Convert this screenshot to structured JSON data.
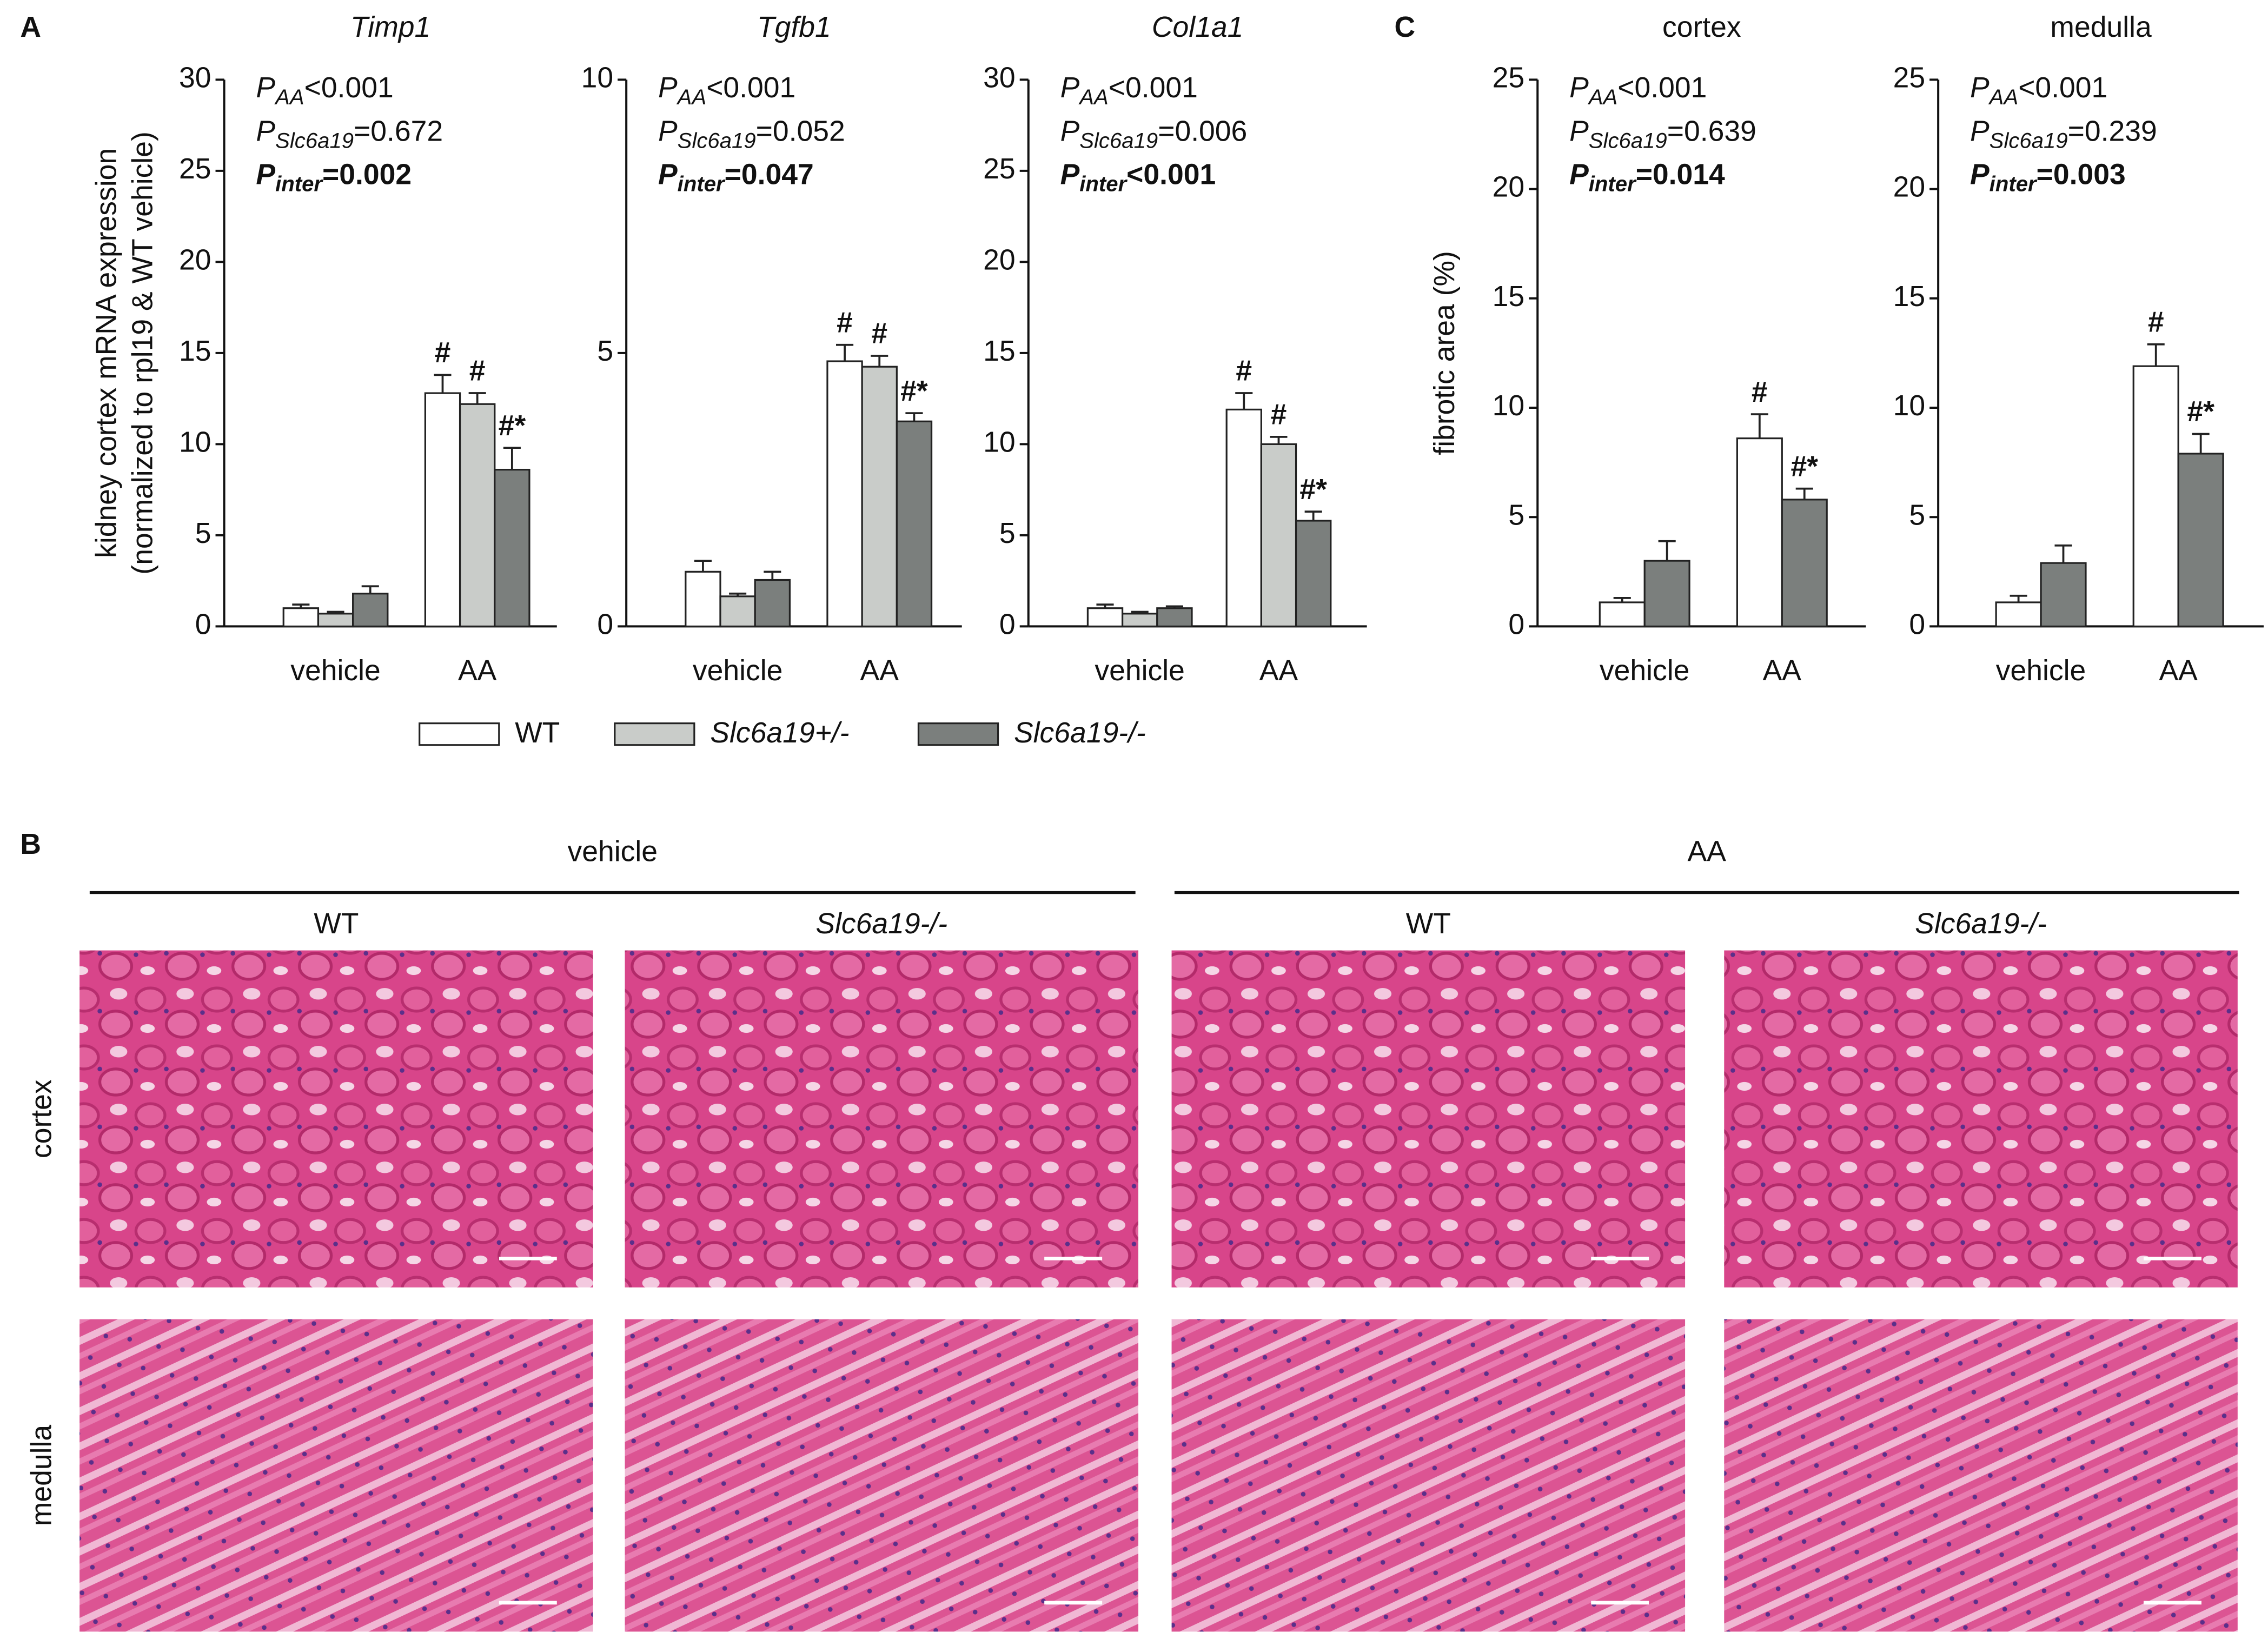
{
  "panel_labels": [
    "A",
    "C"
  ],
  "chart_data": [
    {
      "type": "bar",
      "title": "Timp1",
      "title_italic": true,
      "ylabel": [
        "kidney cortex mRNA expression",
        "(normalized to rpl19 & WT vehicle)"
      ],
      "categories": [
        "vehicle",
        "AA"
      ],
      "ylim": [
        0,
        30
      ],
      "yticks": [
        0,
        5,
        10,
        15,
        20,
        25,
        30
      ],
      "annotations": [
        {
          "symbol": "P",
          "subscript": "AA",
          "text": "<0.001",
          "bold": false
        },
        {
          "symbol": "P",
          "subscript": "Slc6a19",
          "text": "=0.672",
          "bold": false
        },
        {
          "symbol": "P",
          "subscript": "inter",
          "text": "=0.002",
          "bold": true
        }
      ],
      "series": [
        {
          "name": "WT",
          "italic": false,
          "color": "#ffffff",
          "values": [
            1.0,
            12.8
          ],
          "errors": [
            0.2,
            1.0
          ],
          "markers": [
            null,
            "#"
          ]
        },
        {
          "name": "Slc6a19+/-",
          "italic": true,
          "color": "#c9ccc9",
          "values": [
            0.7,
            12.2
          ],
          "errors": [
            0.1,
            0.6
          ],
          "markers": [
            null,
            "#"
          ]
        },
        {
          "name": "Slc6a19-/-",
          "italic": true,
          "color": "#7b7f7d",
          "values": [
            1.8,
            8.6
          ],
          "errors": [
            0.4,
            1.2
          ],
          "markers": [
            null,
            "#*"
          ]
        }
      ]
    },
    {
      "type": "bar",
      "title": "Tgfb1",
      "title_italic": true,
      "categories": [
        "vehicle",
        "AA"
      ],
      "ylim": [
        0,
        10
      ],
      "yticks": [
        0,
        5,
        10
      ],
      "annotations": [
        {
          "symbol": "P",
          "subscript": "AA",
          "text": "<0.001",
          "bold": false
        },
        {
          "symbol": "P",
          "subscript": "Slc6a19",
          "text": "=0.052",
          "bold": false
        },
        {
          "symbol": "P",
          "subscript": "inter",
          "text": "=0.047",
          "bold": true
        }
      ],
      "series": [
        {
          "name": "WT",
          "italic": false,
          "color": "#ffffff",
          "values": [
            1.0,
            4.85
          ],
          "errors": [
            0.2,
            0.3
          ],
          "markers": [
            null,
            "#"
          ]
        },
        {
          "name": "Slc6a19+/-",
          "italic": true,
          "color": "#c9ccc9",
          "values": [
            0.55,
            4.75
          ],
          "errors": [
            0.05,
            0.2
          ],
          "markers": [
            null,
            "#"
          ]
        },
        {
          "name": "Slc6a19-/-",
          "italic": true,
          "color": "#7b7f7d",
          "values": [
            0.85,
            3.75
          ],
          "errors": [
            0.15,
            0.15
          ],
          "markers": [
            null,
            "#*"
          ]
        }
      ]
    },
    {
      "type": "bar",
      "title": "Col1a1",
      "title_italic": true,
      "categories": [
        "vehicle",
        "AA"
      ],
      "ylim": [
        0,
        30
      ],
      "yticks": [
        0,
        5,
        10,
        15,
        20,
        25,
        30
      ],
      "annotations": [
        {
          "symbol": "P",
          "subscript": "AA",
          "text": "<0.001",
          "bold": false
        },
        {
          "symbol": "P",
          "subscript": "Slc6a19",
          "text": "=0.006",
          "bold": false
        },
        {
          "symbol": "P",
          "subscript": "inter",
          "text": "<0.001",
          "bold": true
        }
      ],
      "series": [
        {
          "name": "WT",
          "italic": false,
          "color": "#ffffff",
          "values": [
            1.0,
            11.9
          ],
          "errors": [
            0.2,
            0.9
          ],
          "markers": [
            null,
            "#"
          ]
        },
        {
          "name": "Slc6a19+/-",
          "italic": true,
          "color": "#c9ccc9",
          "values": [
            0.7,
            10.0
          ],
          "errors": [
            0.1,
            0.4
          ],
          "markers": [
            null,
            "#"
          ]
        },
        {
          "name": "Slc6a19-/-",
          "italic": true,
          "color": "#7b7f7d",
          "values": [
            1.0,
            5.8
          ],
          "errors": [
            0.1,
            0.5
          ],
          "markers": [
            null,
            "#*"
          ]
        }
      ]
    },
    {
      "type": "bar",
      "title": "cortex",
      "title_italic": false,
      "ylabel": "fibrotic area (%)",
      "categories": [
        "vehicle",
        "AA"
      ],
      "ylim": [
        0,
        25
      ],
      "yticks": [
        0,
        5,
        10,
        15,
        20,
        25
      ],
      "annotations": [
        {
          "symbol": "P",
          "subscript": "AA",
          "text": "<0.001",
          "bold": false
        },
        {
          "symbol": "P",
          "subscript": "Slc6a19",
          "text": "=0.639",
          "bold": false
        },
        {
          "symbol": "P",
          "subscript": "inter",
          "text": "=0.014",
          "bold": true
        }
      ],
      "series": [
        {
          "name": "WT",
          "italic": false,
          "color": "#ffffff",
          "values": [
            1.1,
            8.6
          ],
          "errors": [
            0.2,
            1.1
          ],
          "markers": [
            null,
            "#"
          ]
        },
        {
          "name": "Slc6a19-/-",
          "italic": true,
          "color": "#7b7f7d",
          "values": [
            3.0,
            5.8
          ],
          "errors": [
            0.9,
            0.5
          ],
          "markers": [
            null,
            "#*"
          ]
        }
      ]
    },
    {
      "type": "bar",
      "title": "medulla",
      "title_italic": false,
      "categories": [
        "vehicle",
        "AA"
      ],
      "ylim": [
        0,
        25
      ],
      "yticks": [
        0,
        5,
        10,
        15,
        20,
        25
      ],
      "annotations": [
        {
          "symbol": "P",
          "subscript": "AA",
          "text": "<0.001",
          "bold": false
        },
        {
          "symbol": "P",
          "subscript": "Slc6a19",
          "text": "=0.239",
          "bold": false
        },
        {
          "symbol": "P",
          "subscript": "inter",
          "text": "=0.003",
          "bold": true
        }
      ],
      "series": [
        {
          "name": "WT",
          "italic": false,
          "color": "#ffffff",
          "values": [
            1.1,
            11.9
          ],
          "errors": [
            0.3,
            1.0
          ],
          "markers": [
            null,
            "#"
          ]
        },
        {
          "name": "Slc6a19-/-",
          "italic": true,
          "color": "#7b7f7d",
          "values": [
            2.9,
            7.9
          ],
          "errors": [
            0.8,
            0.9
          ],
          "markers": [
            null,
            "#*"
          ]
        }
      ]
    }
  ],
  "panel_b": {
    "label": "B",
    "groups": [
      {
        "label": "vehicle",
        "columns": [
          {
            "text": "WT",
            "italic": false
          },
          {
            "text": "Slc6a19-/-",
            "italic": true
          }
        ]
      },
      {
        "label": "AA",
        "columns": [
          {
            "text": "WT",
            "italic": false
          },
          {
            "text": "Slc6a19-/-",
            "italic": true
          }
        ]
      }
    ],
    "rows": [
      "cortex",
      "medulla"
    ]
  }
}
